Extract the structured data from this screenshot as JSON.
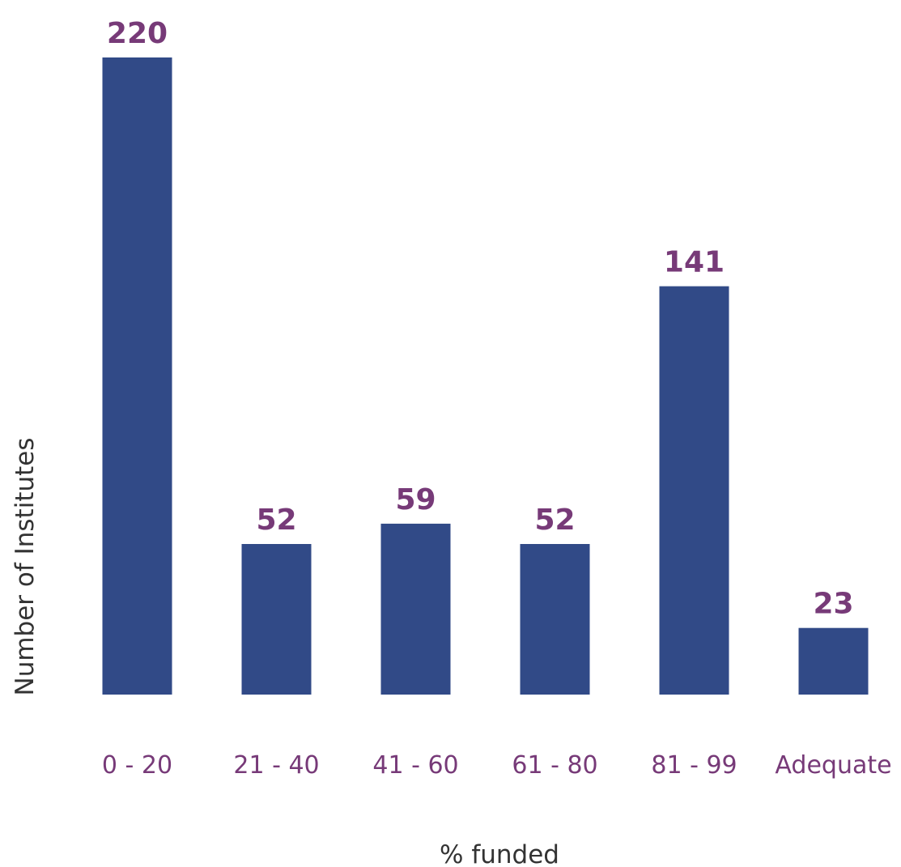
{
  "chart_data": {
    "type": "bar",
    "categories": [
      "0 - 20",
      "21 - 40",
      "41 - 60",
      "61 - 80",
      "81 - 99",
      "Adequate"
    ],
    "values": [
      220,
      52,
      59,
      52,
      141,
      23
    ],
    "xlabel": "% funded",
    "ylabel": "Number of Institutes",
    "ylim": [
      0,
      220
    ],
    "grid": false,
    "legend": "none",
    "colors": {
      "bar": "#314a87",
      "value_label": "#773a78",
      "tick_label": "#773a78",
      "axis_title": "#333333"
    }
  }
}
